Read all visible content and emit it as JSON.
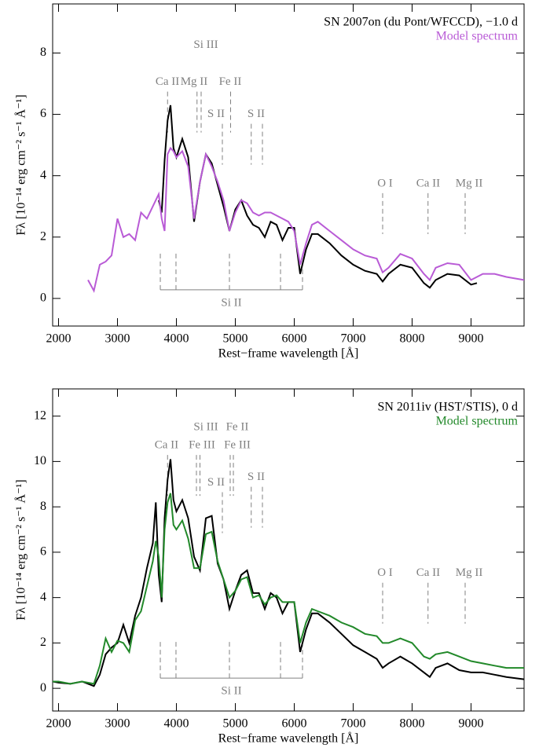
{
  "chart_data": [
    {
      "type": "line",
      "title": "SN 2007on (du Pont/WFCCD),  −1.0 d",
      "x_label": "Rest−frame wavelength [Å]",
      "y_label": "Fλ [10⁻¹⁴ erg cm⁻² s⁻¹ Å⁻¹]",
      "xlim": [
        1900,
        9900
      ],
      "xticks": [
        2000,
        3000,
        4000,
        5000,
        6000,
        7000,
        8000,
        9000
      ],
      "ylim": [
        -0.9,
        9.6
      ],
      "yticks": [
        0,
        2,
        4,
        6,
        8
      ],
      "x": [
        2500,
        2600,
        2700,
        2800,
        2900,
        3000,
        3100,
        3200,
        3300,
        3400,
        3500,
        3600,
        3700,
        3750,
        3800,
        3850,
        3900,
        3950,
        4000,
        4100,
        4200,
        4300,
        4400,
        4500,
        4600,
        4700,
        4800,
        4900,
        5000,
        5100,
        5200,
        5300,
        5400,
        5500,
        5600,
        5700,
        5800,
        5900,
        6000,
        6100,
        6200,
        6300,
        6400,
        6600,
        6800,
        7000,
        7200,
        7400,
        7500,
        7600,
        7800,
        8000,
        8200,
        8300,
        8400,
        8600,
        8800,
        9000,
        9100,
        9200,
        9400,
        9600,
        9900
      ],
      "series": [
        {
          "color": "#000000",
          "values": [
            null,
            null,
            null,
            null,
            null,
            null,
            null,
            null,
            null,
            null,
            null,
            null,
            3.2,
            2.8,
            4.5,
            5.8,
            6.3,
            4.9,
            4.6,
            5.2,
            4.6,
            2.5,
            3.8,
            4.7,
            4.4,
            3.7,
            3.0,
            2.2,
            2.9,
            3.2,
            2.7,
            2.4,
            2.3,
            2.0,
            2.5,
            2.4,
            1.9,
            2.3,
            2.3,
            0.8,
            1.6,
            2.1,
            2.1,
            1.8,
            1.4,
            1.1,
            0.9,
            0.8,
            0.55,
            0.8,
            1.1,
            1.0,
            0.5,
            0.35,
            0.6,
            0.8,
            0.75,
            0.45,
            0.5,
            null,
            null,
            null,
            null
          ]
        },
        {
          "name": "Model spectrum",
          "color": "#b95bd6",
          "values": [
            0.6,
            0.25,
            1.1,
            1.2,
            1.4,
            2.6,
            2.0,
            2.1,
            1.9,
            2.8,
            2.6,
            3.0,
            3.4,
            2.6,
            2.2,
            4.7,
            4.9,
            4.8,
            4.6,
            4.8,
            4.3,
            2.6,
            3.8,
            4.7,
            4.3,
            3.8,
            3.2,
            2.2,
            2.8,
            3.2,
            3.1,
            2.8,
            2.7,
            2.8,
            2.8,
            2.7,
            2.6,
            2.5,
            2.2,
            1.1,
            1.8,
            2.4,
            2.5,
            2.2,
            1.9,
            1.6,
            1.4,
            1.3,
            0.85,
            1.0,
            1.45,
            1.3,
            0.8,
            0.6,
            1.0,
            1.15,
            1.1,
            0.6,
            0.7,
            0.8,
            0.8,
            0.7,
            0.6
          ]
        }
      ],
      "annotations": [
        {
          "text": "Ca II",
          "x": 3847,
          "y": 7.05,
          "dashes": [
            3850
          ]
        },
        {
          "text": "Si III",
          "x": 4500,
          "y": 8.25,
          "dashes": []
        },
        {
          "text": "Mg II",
          "x": 4300,
          "y": 7.05,
          "dashes": [
            4350,
            4420
          ]
        },
        {
          "text": "Fe II",
          "x": 4913,
          "y": 7.05,
          "dashes": [
            4920
          ]
        },
        {
          "text": "S II",
          "x": 4673,
          "y": 6.0,
          "dashes": [
            4780
          ]
        },
        {
          "text": "S II",
          "x": 5353,
          "y": 6.0,
          "dashes": [
            5270,
            5460
          ]
        },
        {
          "text": "O I",
          "x": 7540,
          "y": 3.74,
          "dashes": [
            7500
          ]
        },
        {
          "text": "Ca II",
          "x": 8273,
          "y": 3.74,
          "dashes": [
            8270
          ]
        },
        {
          "text": "Mg II",
          "x": 8967,
          "y": 3.74,
          "dashes": [
            8900
          ]
        }
      ],
      "bracket": {
        "text": "Si II",
        "y": 0.28,
        "x": [
          3727,
          3993,
          4900,
          5767,
          6140
        ]
      }
    },
    {
      "type": "line",
      "title": "SN 2011iv (HST/STIS), 0 d",
      "x_label": "Rest−frame wavelength [Å]",
      "y_label": "Fλ [10⁻¹⁴ erg cm⁻² s⁻¹ Å⁻¹]",
      "xlim": [
        1900,
        9900
      ],
      "xticks": [
        2000,
        3000,
        4000,
        5000,
        6000,
        7000,
        8000,
        9000
      ],
      "ylim": [
        -1,
        13.2
      ],
      "yticks": [
        0,
        2,
        4,
        6,
        8,
        10,
        12
      ],
      "x": [
        1900,
        2000,
        2200,
        2400,
        2600,
        2700,
        2800,
        2900,
        3000,
        3100,
        3200,
        3300,
        3400,
        3500,
        3600,
        3650,
        3700,
        3750,
        3800,
        3850,
        3900,
        3950,
        4000,
        4100,
        4200,
        4300,
        4400,
        4500,
        4600,
        4700,
        4800,
        4900,
        5000,
        5100,
        5200,
        5300,
        5400,
        5500,
        5600,
        5700,
        5800,
        5900,
        6000,
        6100,
        6200,
        6300,
        6400,
        6600,
        6800,
        7000,
        7200,
        7400,
        7500,
        7600,
        7800,
        8000,
        8200,
        8300,
        8400,
        8600,
        8800,
        9000,
        9200,
        9400,
        9600,
        9900
      ],
      "series": [
        {
          "color": "#000000",
          "values": [
            0.3,
            0.25,
            0.2,
            0.3,
            0.1,
            0.6,
            1.5,
            1.8,
            2.0,
            2.8,
            2.0,
            3.2,
            4.0,
            5.3,
            6.4,
            8.2,
            5.0,
            3.8,
            7.5,
            9.2,
            10.1,
            8.3,
            7.8,
            8.3,
            7.5,
            5.8,
            5.2,
            7.5,
            7.6,
            5.5,
            4.8,
            3.5,
            4.3,
            5.0,
            5.2,
            4.2,
            4.2,
            3.5,
            4.2,
            4.0,
            3.3,
            3.8,
            3.8,
            1.6,
            2.6,
            3.3,
            3.3,
            2.9,
            2.4,
            1.9,
            1.6,
            1.3,
            0.9,
            1.1,
            1.4,
            1.1,
            0.7,
            0.5,
            0.9,
            1.1,
            0.8,
            0.7,
            0.7,
            0.6,
            0.5,
            0.4
          ]
        },
        {
          "name": "Model spectrum",
          "color": "#22892a",
          "values": [
            0.3,
            0.3,
            0.2,
            0.3,
            0.2,
            1.0,
            2.2,
            1.6,
            2.1,
            2.0,
            1.6,
            3.0,
            3.4,
            4.5,
            5.6,
            6.5,
            5.8,
            4.0,
            7.0,
            8.2,
            8.6,
            7.2,
            7.0,
            7.4,
            6.6,
            5.3,
            5.3,
            6.8,
            6.9,
            5.6,
            4.8,
            4.0,
            4.3,
            4.8,
            4.9,
            4.0,
            4.1,
            3.7,
            4.0,
            4.1,
            3.8,
            3.8,
            3.8,
            2.0,
            2.9,
            3.5,
            3.4,
            3.2,
            2.9,
            2.7,
            2.4,
            2.3,
            2.0,
            2.0,
            2.2,
            2.0,
            1.4,
            1.3,
            1.5,
            1.6,
            1.4,
            1.2,
            1.1,
            1.0,
            0.9,
            0.9
          ]
        }
      ],
      "annotations": [
        {
          "text": "Ca II",
          "x": 3833,
          "y": 10.7,
          "dashes": [
            3850
          ]
        },
        {
          "text": "Si III",
          "x": 4500,
          "y": 11.5,
          "dashes": []
        },
        {
          "text": "Fe III",
          "x": 4433,
          "y": 10.7,
          "dashes": [
            4340,
            4400
          ]
        },
        {
          "text": "Fe II",
          "x": 5033,
          "y": 11.5,
          "dashes": []
        },
        {
          "text": "Fe III",
          "x": 5033,
          "y": 10.7,
          "dashes": [
            4913,
            4967
          ]
        },
        {
          "text": "S II",
          "x": 4673,
          "y": 9.06,
          "dashes": [
            4780
          ]
        },
        {
          "text": "S II",
          "x": 5353,
          "y": 9.3,
          "dashes": [
            5270,
            5460
          ]
        },
        {
          "text": "O I",
          "x": 7540,
          "y": 5.07,
          "dashes": [
            7500
          ]
        },
        {
          "text": "Ca II",
          "x": 8273,
          "y": 5.07,
          "dashes": [
            8270
          ]
        },
        {
          "text": "Mg II",
          "x": 8967,
          "y": 5.07,
          "dashes": [
            8900
          ]
        }
      ],
      "bracket": {
        "text": "Si II",
        "y": 0.45,
        "x": [
          3727,
          3993,
          4900,
          5767,
          6140
        ]
      }
    }
  ]
}
